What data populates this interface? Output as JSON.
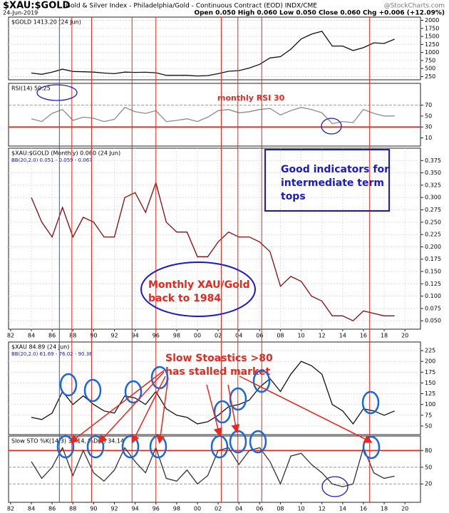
{
  "header": {
    "title": "$XAU:$GOLD",
    "subtitle": "Gold & Silver Index - Philadelphia/Gold - Continuous Contract (EOD) INDX/CME",
    "source": "@StockCharts.com",
    "date": "24-Jun-2019",
    "quote": "Open 0.050  High 0.060  Low 0.050  Close 0.060  Chg +0.006 (+12.09%)"
  },
  "vertical_lines": [
    {
      "color": "#e8281e",
      "x": [
        1987.9,
        1989.8,
        1993.7,
        1996.0,
        2002.3,
        2003.9,
        2006.2,
        2016.6
      ]
    },
    {
      "color": "#3355dd",
      "x": [
        1986.7
      ]
    }
  ],
  "chart_data": [
    {
      "type": "line",
      "title": "$GOLD 1413.20 (24 Jun)",
      "xlim": [
        1981.8,
        2021.5
      ],
      "ylim": [
        150,
        2100
      ],
      "yticks": [
        250,
        500,
        750,
        1000,
        1250,
        1500,
        1750,
        2000
      ],
      "grid": true,
      "x": [
        1984,
        1985,
        1986,
        1987,
        1988,
        1989,
        1990,
        1991,
        1992,
        1993,
        1994,
        1995,
        1996,
        1997,
        1998,
        1999,
        2000,
        2001,
        2002,
        2003,
        2004,
        2005,
        2006,
        2007,
        2008,
        2009,
        2010,
        2011,
        2012,
        2013,
        2014,
        2015,
        2016,
        2017,
        2018,
        2019
      ],
      "series": [
        {
          "name": "$GOLD",
          "color": "#111111",
          "values": [
            360,
            320,
            390,
            480,
            410,
            400,
            390,
            360,
            340,
            390,
            380,
            385,
            370,
            290,
            290,
            290,
            270,
            280,
            340,
            415,
            435,
            515,
            630,
            830,
            870,
            1100,
            1420,
            1570,
            1660,
            1200,
            1200,
            1060,
            1150,
            1300,
            1280,
            1413.2
          ]
        }
      ]
    },
    {
      "type": "line",
      "title": "RSI(14) 50.25",
      "xlim": [
        1981.8,
        2021.5
      ],
      "ylim": [
        -5,
        110
      ],
      "yticks": [
        10,
        30,
        50,
        70
      ],
      "grid": false,
      "hlines": [
        {
          "value": 70,
          "color": "#999999"
        },
        {
          "value": 30,
          "color": "#e8281e"
        }
      ],
      "annotations": [
        {
          "lines": [
            "monthly RSI 30"
          ],
          "color": "#e8281e"
        }
      ],
      "x": [
        1984,
        1985,
        1986,
        1987,
        1988,
        1989,
        1990,
        1991,
        1992,
        1993,
        1994,
        1995,
        1996,
        1997,
        1998,
        1999,
        2000,
        2001,
        2002,
        2003,
        2004,
        2005,
        2006,
        2007,
        2008,
        2009,
        2010,
        2011,
        2012,
        2013,
        2014,
        2015,
        2016,
        2017,
        2018,
        2019
      ],
      "series": [
        {
          "name": "RSI",
          "color": "#8a8a8a",
          "values": [
            45,
            40,
            55,
            62,
            42,
            48,
            46,
            40,
            44,
            66,
            58,
            55,
            60,
            40,
            42,
            45,
            40,
            48,
            60,
            62,
            56,
            58,
            62,
            64,
            52,
            60,
            66,
            62,
            56,
            36,
            40,
            38,
            62,
            55,
            50,
            50.25
          ]
        }
      ]
    },
    {
      "type": "line",
      "title": "$XAU:$GOLD (Monthly) 0.060 (24 Jun)",
      "subtitle": "BB(20,2.0) 0.051 - 0.059 - 0.067",
      "xlim": [
        1981.8,
        2021.5
      ],
      "ylim": [
        0.033,
        0.4
      ],
      "yticks": [
        {
          "value": 0.05,
          "label": "0.050"
        },
        {
          "value": 0.075,
          "label": "0.075"
        },
        {
          "value": 0.1,
          "label": "0.100"
        },
        {
          "value": 0.125,
          "label": "0.125"
        },
        {
          "value": 0.15,
          "label": "0.150"
        },
        {
          "value": 0.175,
          "label": "0.175"
        },
        {
          "value": 0.2,
          "label": "0.200"
        },
        {
          "value": 0.225,
          "label": "0.225"
        },
        {
          "value": 0.25,
          "label": "0.250"
        },
        {
          "value": 0.275,
          "label": "0.275"
        },
        {
          "value": 0.3,
          "label": "0.300"
        },
        {
          "value": 0.325,
          "label": "0.325"
        },
        {
          "value": 0.35,
          "label": "0.350"
        },
        {
          "value": 0.375,
          "label": "0.375"
        }
      ],
      "xticks": [
        {
          "value": 1982,
          "label": "82"
        },
        {
          "value": 1984,
          "label": "84"
        },
        {
          "value": 1986,
          "label": "86"
        },
        {
          "value": 1988,
          "label": "88"
        },
        {
          "value": 1990,
          "label": "90"
        },
        {
          "value": 1992,
          "label": "92"
        },
        {
          "value": 1994,
          "label": "94"
        },
        {
          "value": 1996,
          "label": "96"
        },
        {
          "value": 1998,
          "label": "98"
        },
        {
          "value": 2000,
          "label": "00"
        },
        {
          "value": 2002,
          "label": "02"
        },
        {
          "value": 2004,
          "label": "04"
        },
        {
          "value": 2006,
          "label": "06"
        },
        {
          "value": 2008,
          "label": "08"
        },
        {
          "value": 2010,
          "label": "10"
        },
        {
          "value": 2012,
          "label": "12"
        },
        {
          "value": 2014,
          "label": "14"
        },
        {
          "value": 2016,
          "label": "16"
        },
        {
          "value": 2018,
          "label": "18"
        },
        {
          "value": 2020,
          "label": "20"
        }
      ],
      "grid": true,
      "annotations": [
        {
          "lines": [
            "Good indicators for",
            "intermediate term",
            "tops"
          ],
          "color": "#1a1acc"
        },
        {
          "lines": [
            "Monthly XAU/Gold",
            "back to 1984"
          ],
          "color": "#e8281e"
        }
      ],
      "x": [
        1984,
        1985,
        1986,
        1987,
        1988,
        1989,
        1990,
        1991,
        1992,
        1993,
        1994,
        1995,
        1996,
        1997,
        1998,
        1999,
        2000,
        2001,
        2002,
        2003,
        2004,
        2005,
        2006,
        2007,
        2008,
        2009,
        2010,
        2011,
        2012,
        2013,
        2014,
        2015,
        2016,
        2017,
        2018,
        2019
      ],
      "series": [
        {
          "name": "$XAU:$GOLD",
          "color": "#8b0a0a",
          "values": [
            0.3,
            0.25,
            0.22,
            0.28,
            0.22,
            0.26,
            0.25,
            0.22,
            0.22,
            0.3,
            0.31,
            0.27,
            0.33,
            0.25,
            0.23,
            0.23,
            0.18,
            0.18,
            0.21,
            0.23,
            0.22,
            0.22,
            0.21,
            0.19,
            0.12,
            0.14,
            0.13,
            0.1,
            0.09,
            0.06,
            0.06,
            0.05,
            0.07,
            0.065,
            0.06,
            0.06
          ]
        }
      ]
    },
    {
      "type": "line",
      "title": "$XAU 84.89 (24 Jun)",
      "subtitle": "BB(20,2.0) 61.69 - 76.02 - 90.36",
      "xlim": [
        1981.8,
        2021.5
      ],
      "ylim": [
        30,
        245
      ],
      "yticks": [
        50,
        75,
        100,
        125,
        150,
        175,
        200,
        225
      ],
      "grid": true,
      "annotations": [
        {
          "lines": [
            "Slow Stoastics >80",
            "has stalled market"
          ],
          "color": "#e8281e"
        }
      ],
      "x": [
        1984,
        1985,
        1986,
        1987,
        1988,
        1989,
        1990,
        1991,
        1992,
        1993,
        1994,
        1995,
        1996,
        1997,
        1998,
        1999,
        2000,
        2001,
        2002,
        2003,
        2004,
        2005,
        2006,
        2007,
        2008,
        2009,
        2010,
        2011,
        2012,
        2013,
        2014,
        2015,
        2016,
        2017,
        2018,
        2019
      ],
      "series": [
        {
          "name": "$XAU",
          "color": "#111111",
          "values": [
            70,
            65,
            80,
            130,
            100,
            120,
            100,
            85,
            80,
            120,
            115,
            100,
            130,
            90,
            75,
            70,
            55,
            60,
            75,
            95,
            100,
            110,
            140,
            160,
            130,
            170,
            200,
            190,
            170,
            100,
            85,
            55,
            90,
            85,
            75,
            84.89
          ]
        }
      ]
    },
    {
      "type": "line",
      "title": "Slow STO %K(14,3) 33.14, %D(3) 34.14",
      "xlim": [
        1981.8,
        2021.5
      ],
      "ylim": [
        -13,
        106
      ],
      "yticks": [
        20,
        50,
        80
      ],
      "grid": false,
      "hlines": [
        {
          "value": 80,
          "color": "#e8281e"
        },
        {
          "value": 50,
          "color": "#999999"
        },
        {
          "value": 20,
          "color": "#999999"
        }
      ],
      "xticks": [
        {
          "value": 1982,
          "label": "82"
        },
        {
          "value": 1984,
          "label": "84"
        },
        {
          "value": 1986,
          "label": "86"
        },
        {
          "value": 1988,
          "label": "88"
        },
        {
          "value": 1990,
          "label": "90"
        },
        {
          "value": 1992,
          "label": "92"
        },
        {
          "value": 1994,
          "label": "94"
        },
        {
          "value": 1996,
          "label": "96"
        },
        {
          "value": 1998,
          "label": "98"
        },
        {
          "value": 2000,
          "label": "00"
        },
        {
          "value": 2002,
          "label": "02"
        },
        {
          "value": 2004,
          "label": "04"
        },
        {
          "value": 2006,
          "label": "06"
        },
        {
          "value": 2008,
          "label": "08"
        },
        {
          "value": 2010,
          "label": "10"
        },
        {
          "value": 2012,
          "label": "12"
        },
        {
          "value": 2014,
          "label": "14"
        },
        {
          "value": 2016,
          "label": "16"
        },
        {
          "value": 2018,
          "label": "18"
        },
        {
          "value": 2020,
          "label": "20"
        }
      ],
      "x": [
        1984,
        1985,
        1986,
        1987,
        1988,
        1989,
        1990,
        1991,
        1992,
        1993,
        1994,
        1995,
        1996,
        1997,
        1998,
        1999,
        2000,
        2001,
        2002,
        2003,
        2004,
        2005,
        2006,
        2007,
        2008,
        2009,
        2010,
        2011,
        2012,
        2013,
        2014,
        2015,
        2016,
        2017,
        2018,
        2019
      ],
      "series": [
        {
          "name": "Slow STO",
          "color": "#333333",
          "values": [
            60,
            30,
            50,
            85,
            35,
            80,
            40,
            25,
            45,
            85,
            60,
            40,
            85,
            30,
            25,
            45,
            20,
            35,
            80,
            85,
            55,
            80,
            85,
            60,
            20,
            70,
            75,
            55,
            40,
            20,
            15,
            20,
            85,
            40,
            30,
            34
          ]
        }
      ]
    }
  ]
}
